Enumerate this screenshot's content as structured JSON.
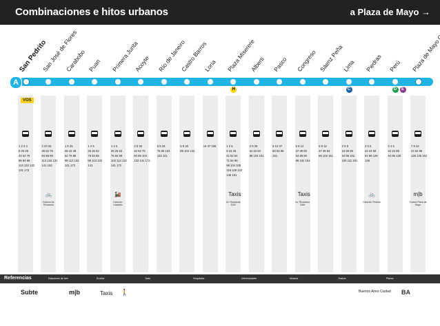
{
  "header": {
    "title": "Combinaciones e hitos urbanos",
    "direction": "a Plaza de Mayo →"
  },
  "line": {
    "id": "A",
    "color": "#1fb4e3",
    "you_are_here": "VOS"
  },
  "stations": [
    {
      "name": "San Pedrito",
      "bold": true,
      "conns": []
    },
    {
      "name": "San José de Flores",
      "bold": false,
      "conns": []
    },
    {
      "name": "Carabobo",
      "bold": false,
      "conns": []
    },
    {
      "name": "Puan",
      "bold": false,
      "conns": []
    },
    {
      "name": "Primera Junta",
      "bold": false,
      "conns": []
    },
    {
      "name": "Acoyte",
      "bold": false,
      "conns": []
    },
    {
      "name": "Río de Janeiro",
      "bold": false,
      "conns": []
    },
    {
      "name": "Castro Barros",
      "bold": false,
      "conns": []
    },
    {
      "name": "Loria",
      "bold": false,
      "conns": []
    },
    {
      "name": "Plaza Miserere",
      "bold": false,
      "conns": [
        "H"
      ]
    },
    {
      "name": "Alberti",
      "bold": false,
      "conns": []
    },
    {
      "name": "Pasco",
      "bold": false,
      "conns": []
    },
    {
      "name": "Congreso",
      "bold": false,
      "conns": []
    },
    {
      "name": "Sáenz Peña",
      "bold": false,
      "conns": []
    },
    {
      "name": "Lima",
      "bold": false,
      "conns": [
        "C"
      ]
    },
    {
      "name": "Piedras",
      "bold": false,
      "conns": []
    },
    {
      "name": "Perú",
      "bold": false,
      "conns": [
        "D",
        "E"
      ]
    },
    {
      "name": "Plaza de Mayo Casa Rosada",
      "bold": false,
      "conns": []
    }
  ],
  "buses": [
    [
      "1 2 3 4",
      "8 25 26",
      "44 52 76",
      "86 92 99",
      "113 132 133",
      "141 172"
    ],
    [
      "2 23 25",
      "26 52 76",
      "84 86 99",
      "113 132 133",
      "141 163"
    ],
    [
      "1 5 25",
      "26 42 49",
      "52 76 85",
      "99 113 132",
      "141 172"
    ],
    [
      "1 2 5",
      "25 26 52",
      "76 84 85",
      "99 113 132",
      "141"
    ],
    [
      "1 2 5",
      "25 26 53",
      "76 84 99",
      "104 113 132",
      "141 172"
    ],
    [
      "2 5 26",
      "42 52 76",
      "84 99 104",
      "132 141 172"
    ],
    [
      "5 8 26",
      "76 86 104",
      "132 141"
    ],
    [
      "5 8 26",
      "86 104 132"
    ],
    [
      "16 37 106"
    ],
    [
      "1 2 5",
      "8 24 26",
      "41 62 64",
      "71 84 86",
      "98 104 105",
      "118 128 132",
      "146 151"
    ],
    [
      "2 8 26",
      "41 62 64",
      "86 104 151"
    ],
    [
      "8 12 37",
      "60 64 86",
      "151"
    ],
    [
      "5 8 12",
      "37 39 60",
      "64 86 90",
      "98 102 151"
    ],
    [
      "5 8 12",
      "37 39 64",
      "86 102 151"
    ],
    [
      "2 5 8",
      "24 56 59",
      "64 86 102",
      "105 111 151"
    ],
    [
      "2 5 8",
      "22 24 59",
      "64 86 126",
      "146"
    ],
    [
      "2 4 5",
      "22 24 59",
      "64 86 126"
    ],
    [
      "7 8 22",
      "24 64 86",
      "126 146 152"
    ]
  ],
  "pois": [
    {
      "col": 1,
      "icon": "🚲",
      "label": "Ciclovía Av. Rivadavia"
    },
    {
      "col": 4,
      "icon": "🚂",
      "label": "Estación Caballito"
    },
    {
      "col": 9,
      "icon": "Taxis",
      "label": "Av. Rivadavia 3100"
    },
    {
      "col": 12,
      "icon": "Taxis",
      "label": "Av. Rivadavia 1800"
    },
    {
      "col": 15,
      "icon": "🚲",
      "label": "Estación Piedras"
    },
    {
      "col": 17,
      "icon": "m|b",
      "label": "Ecobici Plaza de Mayo"
    }
  ],
  "legend": {
    "title": "Referencias",
    "items": [
      "Estaciones de tren",
      "Ecobici",
      "Taxis",
      "Hospitales",
      "Universidades",
      "Museos",
      "Teatros",
      "Plazas"
    ]
  },
  "footer": {
    "subte_label": "Subte",
    "mib_label": "m|b",
    "taxis_label": "Taxis",
    "walk_label": "🚶",
    "city_brand": "Buenos Aires Ciudad",
    "ba_logo": "BA"
  }
}
